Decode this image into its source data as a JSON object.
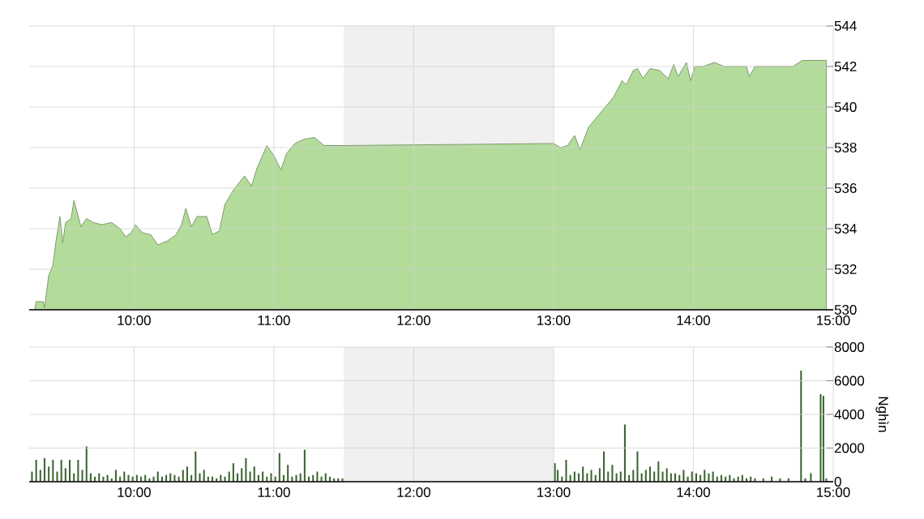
{
  "chart_data": [
    {
      "type": "area",
      "color": "#b3dc9b",
      "x": [
        9.29,
        9.3,
        9.35,
        9.36,
        9.39,
        9.42,
        9.44,
        9.47,
        9.49,
        9.51,
        9.55,
        9.57,
        9.62,
        9.66,
        9.71,
        9.77,
        9.84,
        9.9,
        9.94,
        9.98,
        10.01,
        10.06,
        10.12,
        10.17,
        10.24,
        10.3,
        10.34,
        10.37,
        10.41,
        10.45,
        10.52,
        10.56,
        10.61,
        10.65,
        10.71,
        10.79,
        10.84,
        10.88,
        10.95,
        11.0,
        11.05,
        11.09,
        11.15,
        11.21,
        11.29,
        11.36,
        11.5,
        13.0,
        13.05,
        13.1,
        13.15,
        13.19,
        13.25,
        13.31,
        13.37,
        13.43,
        13.49,
        13.52,
        13.57,
        13.6,
        13.64,
        13.69,
        13.76,
        13.82,
        13.86,
        13.89,
        13.95,
        13.98,
        14.01,
        14.07,
        14.15,
        14.22,
        14.38,
        14.4,
        14.44,
        14.5,
        14.71,
        14.78,
        14.95
      ],
      "values": [
        530.0,
        530.4,
        530.4,
        530.1,
        531.7,
        532.2,
        533.3,
        534.6,
        533.3,
        534.3,
        534.5,
        535.4,
        534.1,
        534.5,
        534.3,
        534.2,
        534.3,
        534.0,
        533.6,
        533.8,
        534.2,
        533.8,
        533.7,
        533.2,
        533.4,
        533.7,
        534.2,
        535.0,
        534.1,
        534.6,
        534.6,
        533.7,
        533.9,
        535.2,
        535.9,
        536.6,
        536.1,
        537.0,
        538.1,
        537.6,
        536.9,
        537.7,
        538.2,
        538.4,
        538.5,
        538.1,
        538.1,
        538.2,
        538.0,
        538.1,
        538.6,
        537.9,
        539.0,
        539.5,
        540.0,
        540.5,
        541.3,
        541.1,
        541.8,
        541.9,
        541.4,
        541.9,
        541.8,
        541.4,
        542.1,
        541.5,
        542.2,
        541.3,
        542.0,
        542.0,
        542.2,
        542.0,
        542.0,
        541.5,
        542.0,
        542.0,
        542.0,
        542.3,
        542.3
      ],
      "xlim": [
        9.25,
        15
      ],
      "ylim": [
        530,
        544
      ],
      "yticks": [
        530,
        532,
        534,
        536,
        538,
        540,
        542,
        544
      ],
      "xticks": [
        {
          "value": 10,
          "label": "10:00"
        },
        {
          "value": 11,
          "label": "11:00"
        },
        {
          "value": 12,
          "label": "12:00"
        },
        {
          "value": 13,
          "label": "13:00"
        },
        {
          "value": 14,
          "label": "14:00"
        },
        {
          "value": 15,
          "label": "15:00"
        }
      ],
      "bands": [
        {
          "axis": "x",
          "from": 11.5,
          "to": 13.0,
          "color": "#f0f0f0"
        }
      ],
      "grid": true
    },
    {
      "type": "bar",
      "color": "#3d6632",
      "ylabel": "Nghìn",
      "x": [
        9.27,
        9.3,
        9.33,
        9.36,
        9.39,
        9.42,
        9.45,
        9.48,
        9.51,
        9.54,
        9.57,
        9.6,
        9.63,
        9.66,
        9.69,
        9.72,
        9.75,
        9.78,
        9.81,
        9.84,
        9.87,
        9.9,
        9.93,
        9.96,
        9.99,
        10.02,
        10.05,
        10.08,
        10.11,
        10.14,
        10.17,
        10.2,
        10.23,
        10.26,
        10.29,
        10.32,
        10.35,
        10.38,
        10.41,
        10.44,
        10.47,
        10.5,
        10.53,
        10.56,
        10.59,
        10.62,
        10.65,
        10.68,
        10.71,
        10.74,
        10.77,
        10.8,
        10.83,
        10.86,
        10.89,
        10.92,
        10.95,
        10.98,
        11.01,
        11.04,
        11.07,
        11.1,
        11.13,
        11.16,
        11.19,
        11.22,
        11.25,
        11.28,
        11.31,
        11.34,
        11.37,
        11.4,
        11.43,
        11.46,
        11.49,
        13.01,
        13.03,
        13.06,
        13.09,
        13.12,
        13.15,
        13.18,
        13.21,
        13.24,
        13.27,
        13.3,
        13.33,
        13.36,
        13.39,
        13.42,
        13.45,
        13.48,
        13.51,
        13.54,
        13.57,
        13.6,
        13.63,
        13.66,
        13.69,
        13.72,
        13.75,
        13.78,
        13.81,
        13.84,
        13.87,
        13.9,
        13.93,
        13.96,
        13.99,
        14.02,
        14.05,
        14.08,
        14.11,
        14.14,
        14.17,
        14.2,
        14.23,
        14.26,
        14.29,
        14.32,
        14.35,
        14.38,
        14.41,
        14.44,
        14.5,
        14.56,
        14.62,
        14.68,
        14.77,
        14.8,
        14.84,
        14.91,
        14.93,
        14.95
      ],
      "values": [
        600,
        1300,
        700,
        1400,
        900,
        1300,
        600,
        1300,
        800,
        1300,
        500,
        1300,
        700,
        2100,
        500,
        300,
        500,
        300,
        400,
        200,
        700,
        300,
        600,
        400,
        300,
        400,
        300,
        400,
        200,
        300,
        600,
        300,
        400,
        500,
        400,
        300,
        700,
        900,
        400,
        1800,
        500,
        700,
        300,
        300,
        200,
        400,
        300,
        600,
        1100,
        500,
        800,
        1400,
        600,
        900,
        400,
        600,
        300,
        500,
        300,
        1700,
        400,
        1000,
        300,
        400,
        500,
        1900,
        300,
        400,
        600,
        300,
        500,
        300,
        200,
        200,
        200,
        1100,
        700,
        300,
        1300,
        400,
        600,
        500,
        900,
        500,
        700,
        400,
        800,
        1800,
        600,
        1000,
        500,
        600,
        3400,
        400,
        700,
        1800,
        500,
        700,
        900,
        600,
        1200,
        600,
        800,
        500,
        500,
        400,
        700,
        300,
        600,
        500,
        400,
        700,
        500,
        600,
        300,
        400,
        300,
        400,
        200,
        300,
        400,
        200,
        300,
        200,
        200,
        300,
        200,
        200,
        6600,
        200,
        500,
        5200,
        5100,
        200
      ],
      "xlim": [
        9.25,
        15
      ],
      "ylim": [
        0,
        8000
      ],
      "yticks": [
        0,
        2000,
        4000,
        6000,
        8000
      ],
      "xticks": [
        {
          "value": 10,
          "label": "10:00"
        },
        {
          "value": 11,
          "label": "11:00"
        },
        {
          "value": 12,
          "label": "12:00"
        },
        {
          "value": 13,
          "label": "13:00"
        },
        {
          "value": 14,
          "label": "14:00"
        },
        {
          "value": 15,
          "label": "15:00"
        }
      ],
      "bands": [
        {
          "axis": "x",
          "from": 11.5,
          "to": 13.0,
          "color": "#f0f0f0"
        }
      ],
      "grid": true
    }
  ]
}
